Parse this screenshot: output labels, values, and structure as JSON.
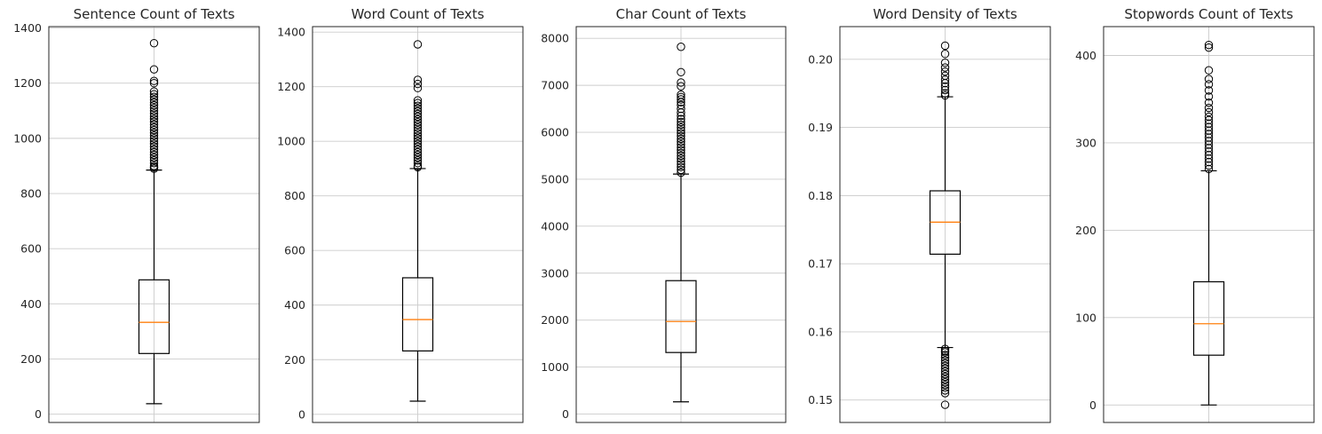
{
  "chart_data": [
    {
      "type": "box",
      "title": "Sentence Count of Texts",
      "ylim": [
        -30,
        1405
      ],
      "yticks": [
        0,
        200,
        400,
        600,
        800,
        1000,
        1200,
        1400
      ],
      "stats": {
        "whisker_low": 38,
        "q1": 220,
        "median": 333,
        "q3": 487,
        "whisker_high": 885
      },
      "outliers": [
        1345,
        1250,
        1208,
        1200,
        1170,
        1160,
        1150,
        1140,
        1130,
        1120,
        1110,
        1100,
        1090,
        1080,
        1070,
        1060,
        1050,
        1040,
        1030,
        1020,
        1010,
        1000,
        990,
        980,
        970,
        960,
        950,
        940,
        930,
        920,
        910,
        900,
        895,
        890
      ]
    },
    {
      "type": "box",
      "title": "Word Count of Texts",
      "ylim": [
        -30,
        1420
      ],
      "yticks": [
        0,
        200,
        400,
        600,
        800,
        1000,
        1200,
        1400
      ],
      "stats": {
        "whisker_low": 48,
        "q1": 232,
        "median": 347,
        "q3": 500,
        "whisker_high": 900
      },
      "outliers": [
        1355,
        1225,
        1210,
        1195,
        1150,
        1140,
        1130,
        1120,
        1110,
        1100,
        1090,
        1080,
        1070,
        1060,
        1050,
        1040,
        1030,
        1020,
        1010,
        1000,
        990,
        980,
        970,
        960,
        950,
        940,
        930,
        920,
        910,
        905
      ]
    },
    {
      "type": "box",
      "title": "Char Count of Texts",
      "ylim": [
        -180,
        8250
      ],
      "yticks": [
        0,
        1000,
        2000,
        3000,
        4000,
        5000,
        6000,
        7000,
        8000
      ],
      "stats": {
        "whisker_low": 260,
        "q1": 1310,
        "median": 1970,
        "q3": 2840,
        "whisker_high": 5110
      },
      "outliers": [
        7820,
        7280,
        7060,
        6980,
        6800,
        6750,
        6700,
        6640,
        6580,
        6500,
        6420,
        6350,
        6280,
        6220,
        6160,
        6100,
        6040,
        5980,
        5920,
        5860,
        5800,
        5740,
        5680,
        5620,
        5560,
        5500,
        5440,
        5380,
        5320,
        5260,
        5200,
        5140
      ]
    },
    {
      "type": "box",
      "title": "Word Density of Texts",
      "ylim": [
        0.1467,
        0.2048
      ],
      "yticks": [
        0.15,
        0.16,
        0.17,
        0.18,
        0.19,
        0.2
      ],
      "stats": {
        "whisker_low": 0.1577,
        "q1": 0.1714,
        "median": 0.1761,
        "q3": 0.1807,
        "whisker_high": 0.1945
      },
      "outliers": [
        0.202,
        0.2008,
        0.1995,
        0.1988,
        0.1982,
        0.1976,
        0.197,
        0.1965,
        0.196,
        0.1955,
        0.195,
        0.1947,
        0.1575,
        0.1572,
        0.157,
        0.1566,
        0.1562,
        0.1558,
        0.1554,
        0.155,
        0.1546,
        0.1542,
        0.1538,
        0.1534,
        0.153,
        0.1526,
        0.1522,
        0.1518,
        0.1514,
        0.151,
        0.1493
      ]
    },
    {
      "type": "box",
      "title": "Stopwords Count of Texts",
      "ylim": [
        -20,
        433
      ],
      "yticks": [
        0,
        100,
        200,
        300,
        400
      ],
      "stats": {
        "whisker_low": 0,
        "q1": 57,
        "median": 93,
        "q3": 141,
        "whisker_high": 268
      },
      "outliers": [
        412,
        409,
        383,
        373,
        367,
        360,
        353,
        346,
        340,
        335,
        330,
        326,
        322,
        318,
        314,
        310,
        306,
        302,
        298,
        294,
        290,
        286,
        282,
        278,
        274,
        270
      ]
    }
  ]
}
